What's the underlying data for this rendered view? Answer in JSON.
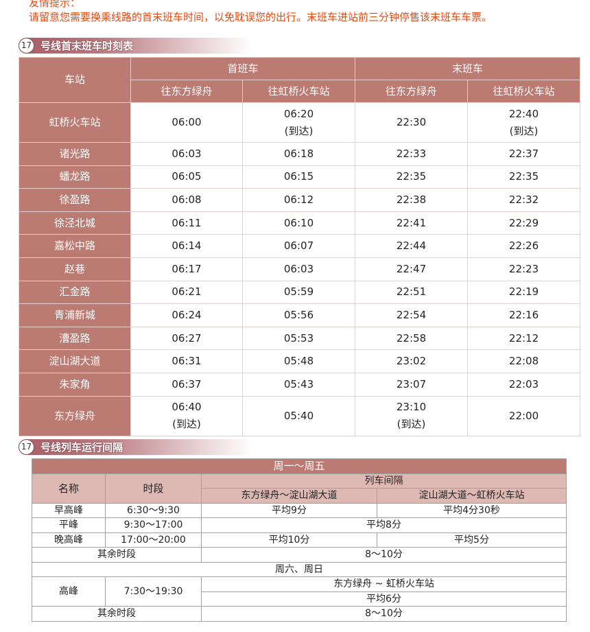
{
  "notice": {
    "title": "友情提示：",
    "text": "请留意您需要换乘线路的首末班车时间，以免耽误您的出行。末班车进站前三分钟停售该末班车车票。",
    "color": "#e8490f"
  },
  "timetable": {
    "line": "17",
    "title": "号线首末班车时刻表",
    "headers": {
      "station": "车站",
      "first": "首班车",
      "last": "末班车",
      "dir1": "往东方绿舟",
      "dir2": "往虹桥火车站"
    },
    "rows": [
      {
        "station": "虹桥火车站",
        "f1": "06:00",
        "f2": "06:20",
        "f2_note": "(到达)",
        "l1": "22:30",
        "l2": "22:40",
        "l2_note": "(到达)"
      },
      {
        "station": "诸光路",
        "f1": "06:03",
        "f2": "06:18",
        "l1": "22:33",
        "l2": "22:37"
      },
      {
        "station": "蟠龙路",
        "f1": "06:05",
        "f2": "06:15",
        "l1": "22:35",
        "l2": "22:35"
      },
      {
        "station": "徐盈路",
        "f1": "06:08",
        "f2": "06:12",
        "l1": "22:38",
        "l2": "22:32"
      },
      {
        "station": "徐泾北城",
        "f1": "06:11",
        "f2": "06:10",
        "l1": "22:41",
        "l2": "22:29"
      },
      {
        "station": "嘉松中路",
        "f1": "06:14",
        "f2": "06:07",
        "l1": "22:44",
        "l2": "22:26"
      },
      {
        "station": "赵巷",
        "f1": "06:17",
        "f2": "06:03",
        "l1": "22:47",
        "l2": "22:23"
      },
      {
        "station": "汇金路",
        "f1": "06:21",
        "f2": "05:59",
        "l1": "22:51",
        "l2": "22:19"
      },
      {
        "station": "青浦新城",
        "f1": "06:24",
        "f2": "05:56",
        "l1": "22:54",
        "l2": "22:16"
      },
      {
        "station": "漕盈路",
        "f1": "06:27",
        "f2": "05:53",
        "l1": "22:58",
        "l2": "22:12"
      },
      {
        "station": "淀山湖大道",
        "f1": "06:31",
        "f2": "05:48",
        "l1": "23:02",
        "l2": "22:08"
      },
      {
        "station": "朱家角",
        "f1": "06:37",
        "f2": "05:43",
        "l1": "23:07",
        "l2": "22:03"
      },
      {
        "station": "东方绿舟",
        "f1": "06:40",
        "f1_note": "(到达)",
        "f2": "05:40",
        "l1": "23:10",
        "l1_note": "(到达)",
        "l2": "22:00"
      }
    ]
  },
  "intervals": {
    "line": "17",
    "title": "号线列车运行间隔",
    "weekday": "周一～周五",
    "name": "名称",
    "period": "时段",
    "interval": "列车间隔",
    "seg1": "东方绿舟～淀山湖大道",
    "seg2": "淀山湖大道～虹桥火车站",
    "morning": {
      "name": "早高峰",
      "time": "6:30～9:30",
      "v1": "平均9分",
      "v2": "平均4分30秒"
    },
    "offpeak": {
      "name": "平峰",
      "time": "9:30～17:00",
      "v": "平均8分"
    },
    "evening": {
      "name": "晚高峰",
      "time": "17:00～20:00",
      "v1": "平均10分",
      "v2": "平均5分"
    },
    "other": {
      "name": "其余时段",
      "v": "8～10分"
    },
    "weekend": "周六、周日",
    "wpeak": {
      "name": "高峰",
      "time": "7:30～19:30",
      "seg": "东方绿舟 ~ 虹桥火车站",
      "v": "平均6分"
    },
    "wother": {
      "name": "其余时段",
      "v": "8～10分"
    }
  },
  "colors": {
    "header": "#bb7a72",
    "subheader": "#deb9b4"
  }
}
